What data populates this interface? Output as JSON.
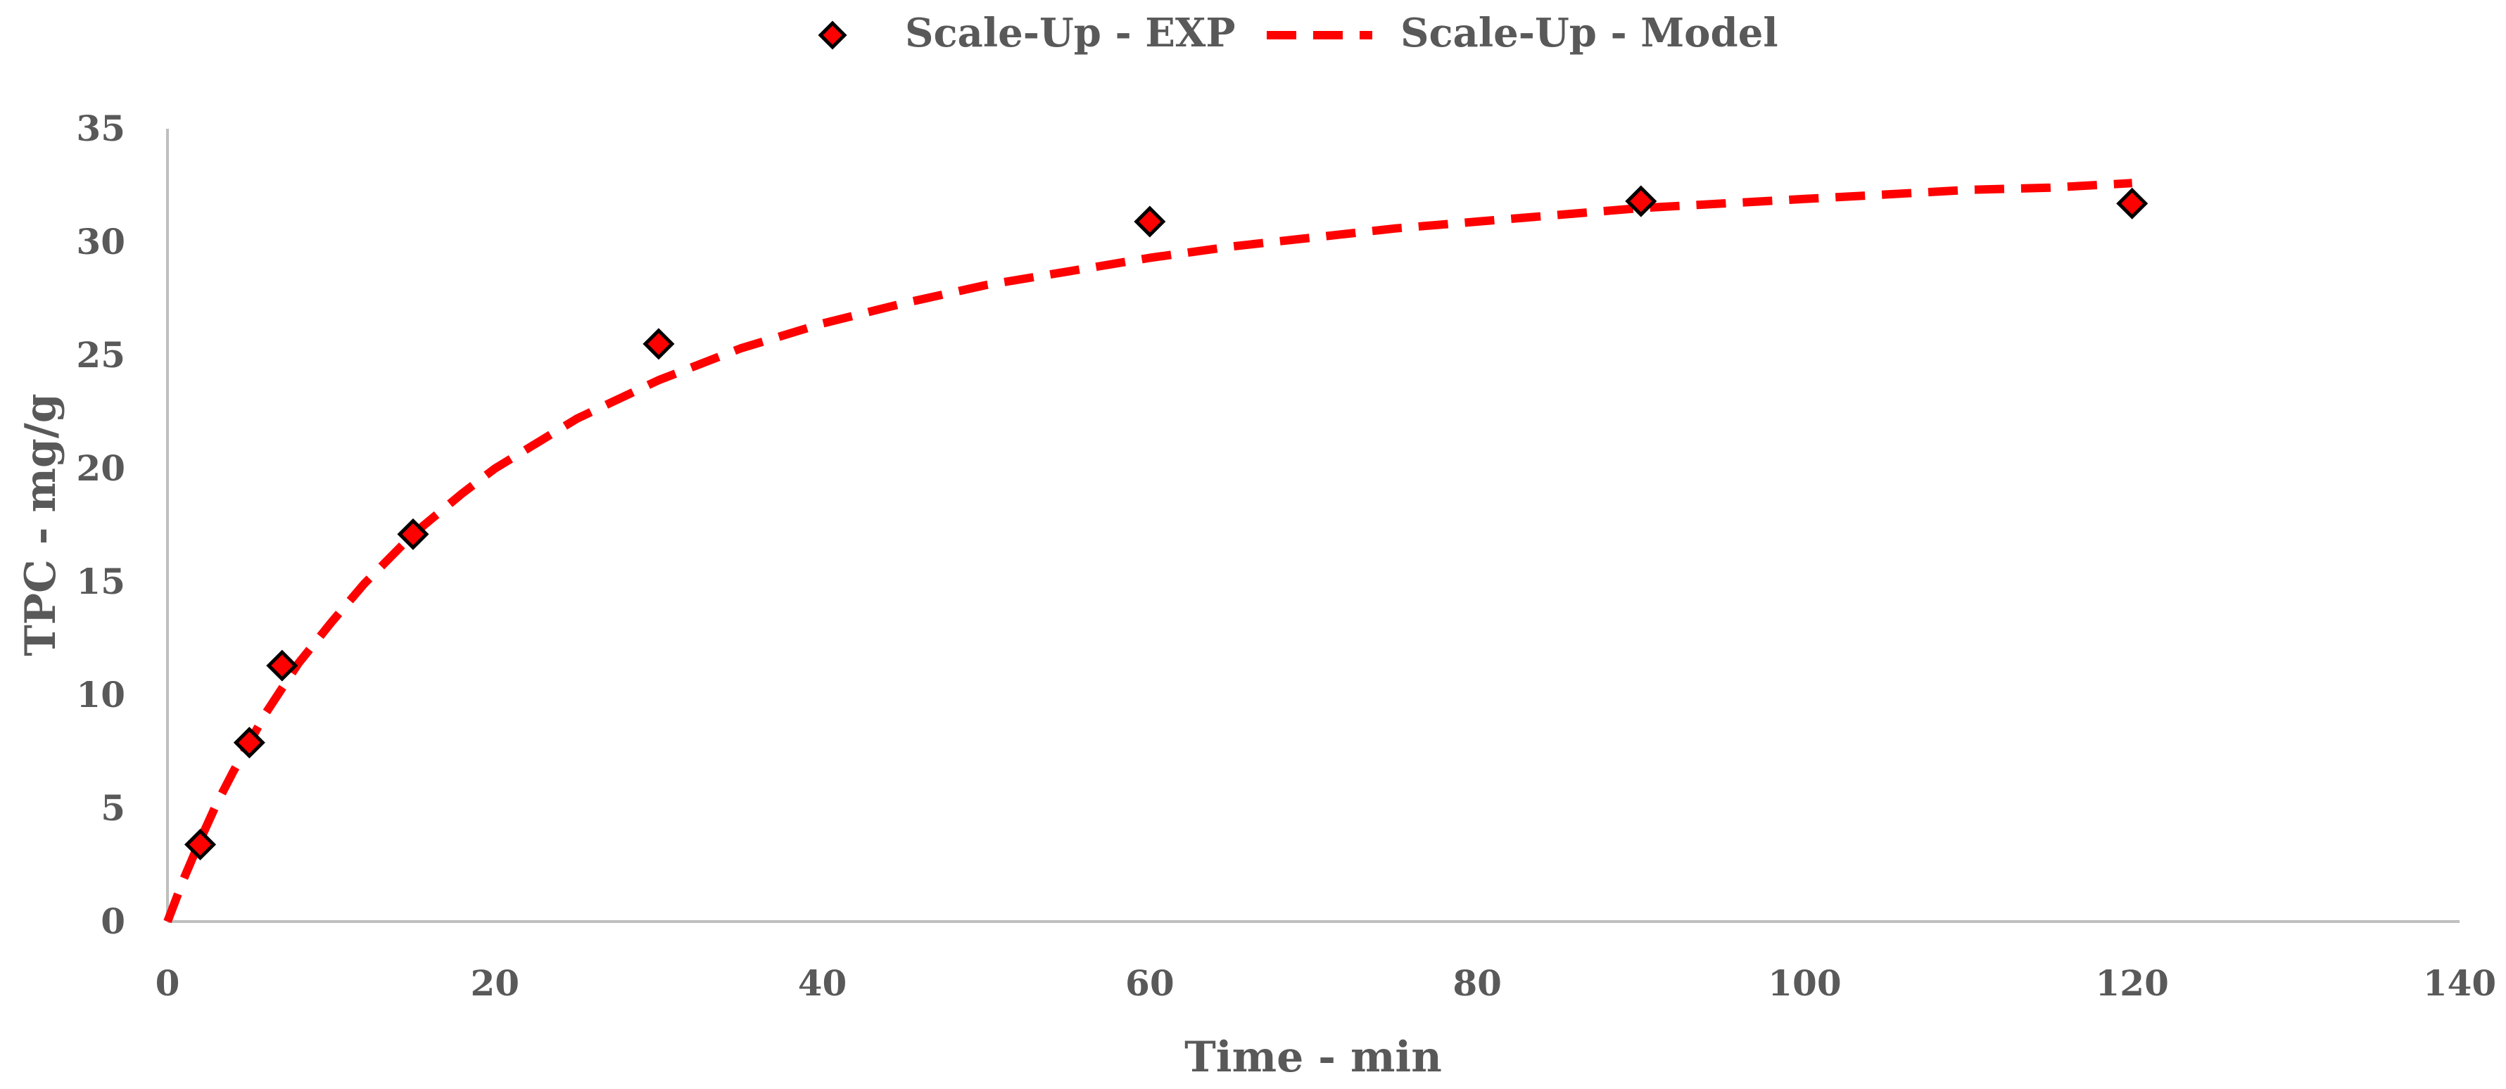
{
  "chart_data": {
    "type": "scatter",
    "title": "",
    "xlabel": "Time - min",
    "ylabel": "TPC - mg/g",
    "xlim": [
      0,
      140
    ],
    "ylim": [
      0,
      35
    ],
    "xticks": [
      "0",
      "20",
      "40",
      "60",
      "80",
      "100",
      "120",
      "140"
    ],
    "yticks": [
      "0",
      "5",
      "10",
      "15",
      "20",
      "25",
      "30",
      "35"
    ],
    "grid": false,
    "legend_position": "top-center",
    "series": [
      {
        "name": "Scale-Up - EXP",
        "style": "markers",
        "marker": "diamond",
        "color": "#ff0000",
        "x": [
          2,
          5,
          7,
          15,
          30,
          60,
          90,
          120
        ],
        "y": [
          3.4,
          7.9,
          11.3,
          17.1,
          25.5,
          30.9,
          31.8,
          31.7
        ]
      },
      {
        "name": "Scale-Up - Model",
        "style": "dashed-line",
        "color": "#ff0000",
        "x": [
          0,
          1,
          2,
          3,
          4,
          5,
          6,
          7,
          8,
          10,
          12,
          15,
          18,
          20,
          25,
          30,
          35,
          40,
          45,
          50,
          55,
          60,
          65,
          70,
          75,
          80,
          85,
          90,
          95,
          100,
          105,
          110,
          115,
          120
        ],
        "y": [
          0,
          1.9,
          3.6,
          5.2,
          6.6,
          7.9,
          9.2,
          10.3,
          11.4,
          13.2,
          14.9,
          17.1,
          18.9,
          20.0,
          22.2,
          23.9,
          25.3,
          26.4,
          27.3,
          28.1,
          28.7,
          29.3,
          29.8,
          30.2,
          30.6,
          30.9,
          31.2,
          31.5,
          31.7,
          31.9,
          32.1,
          32.3,
          32.4,
          32.6
        ]
      }
    ]
  }
}
